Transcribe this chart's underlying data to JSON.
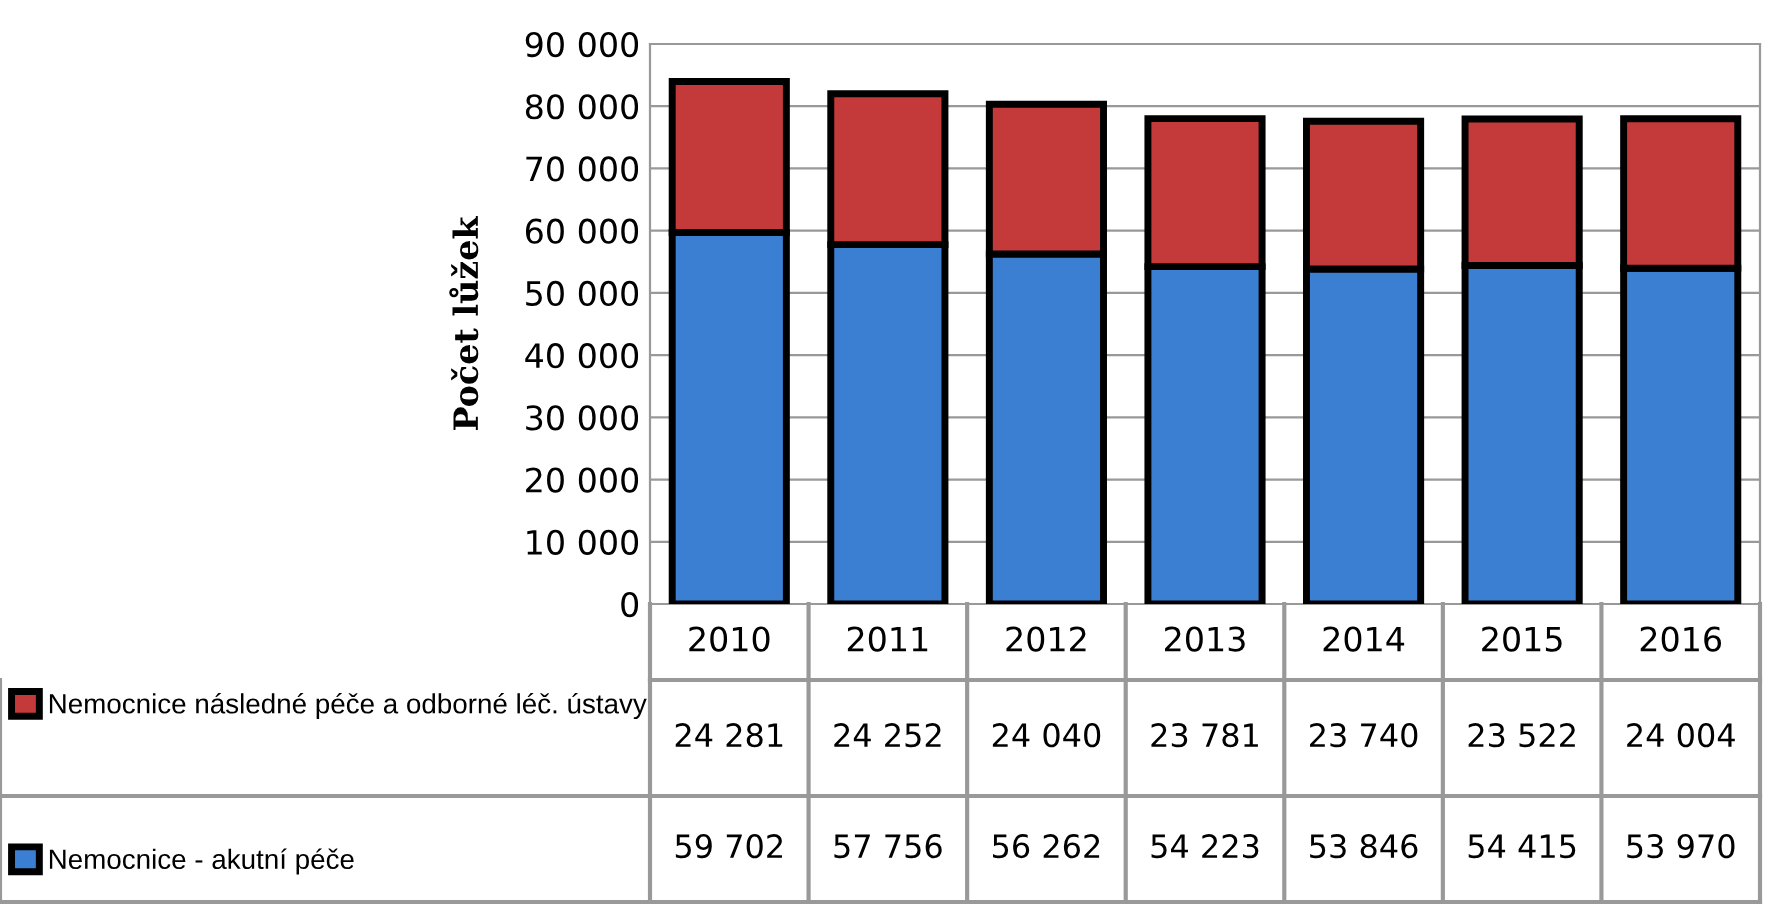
{
  "chart_data": {
    "type": "bar",
    "stacked": true,
    "ylabel": "Počet lůžek",
    "categories": [
      "2010",
      "2011",
      "2012",
      "2013",
      "2014",
      "2015",
      "2016"
    ],
    "series": [
      {
        "name": "Nemocnice - akutní péče",
        "color": "#3b7fd2",
        "values": [
          59702,
          57756,
          56262,
          54223,
          53846,
          54415,
          53970
        ]
      },
      {
        "name": "Nemocnice následné péče a odborné léč. ústavy",
        "color": "#c43a3a",
        "values": [
          24281,
          24252,
          24040,
          23781,
          23740,
          23522,
          24004
        ]
      }
    ],
    "ylim": [
      0,
      90000
    ],
    "yticks": [
      {
        "value": 0,
        "label": "0"
      },
      {
        "value": 10000,
        "label": "10 000"
      },
      {
        "value": 20000,
        "label": "20 000"
      },
      {
        "value": 30000,
        "label": "30 000"
      },
      {
        "value": 40000,
        "label": "40 000"
      },
      {
        "value": 50000,
        "label": "50 000"
      },
      {
        "value": 60000,
        "label": "60 000"
      },
      {
        "value": 70000,
        "label": "70 000"
      },
      {
        "value": 80000,
        "label": "80 000"
      },
      {
        "value": 90000,
        "label": "90 000"
      }
    ],
    "grid": "y",
    "legend": "bottom left",
    "data_labels": true
  }
}
